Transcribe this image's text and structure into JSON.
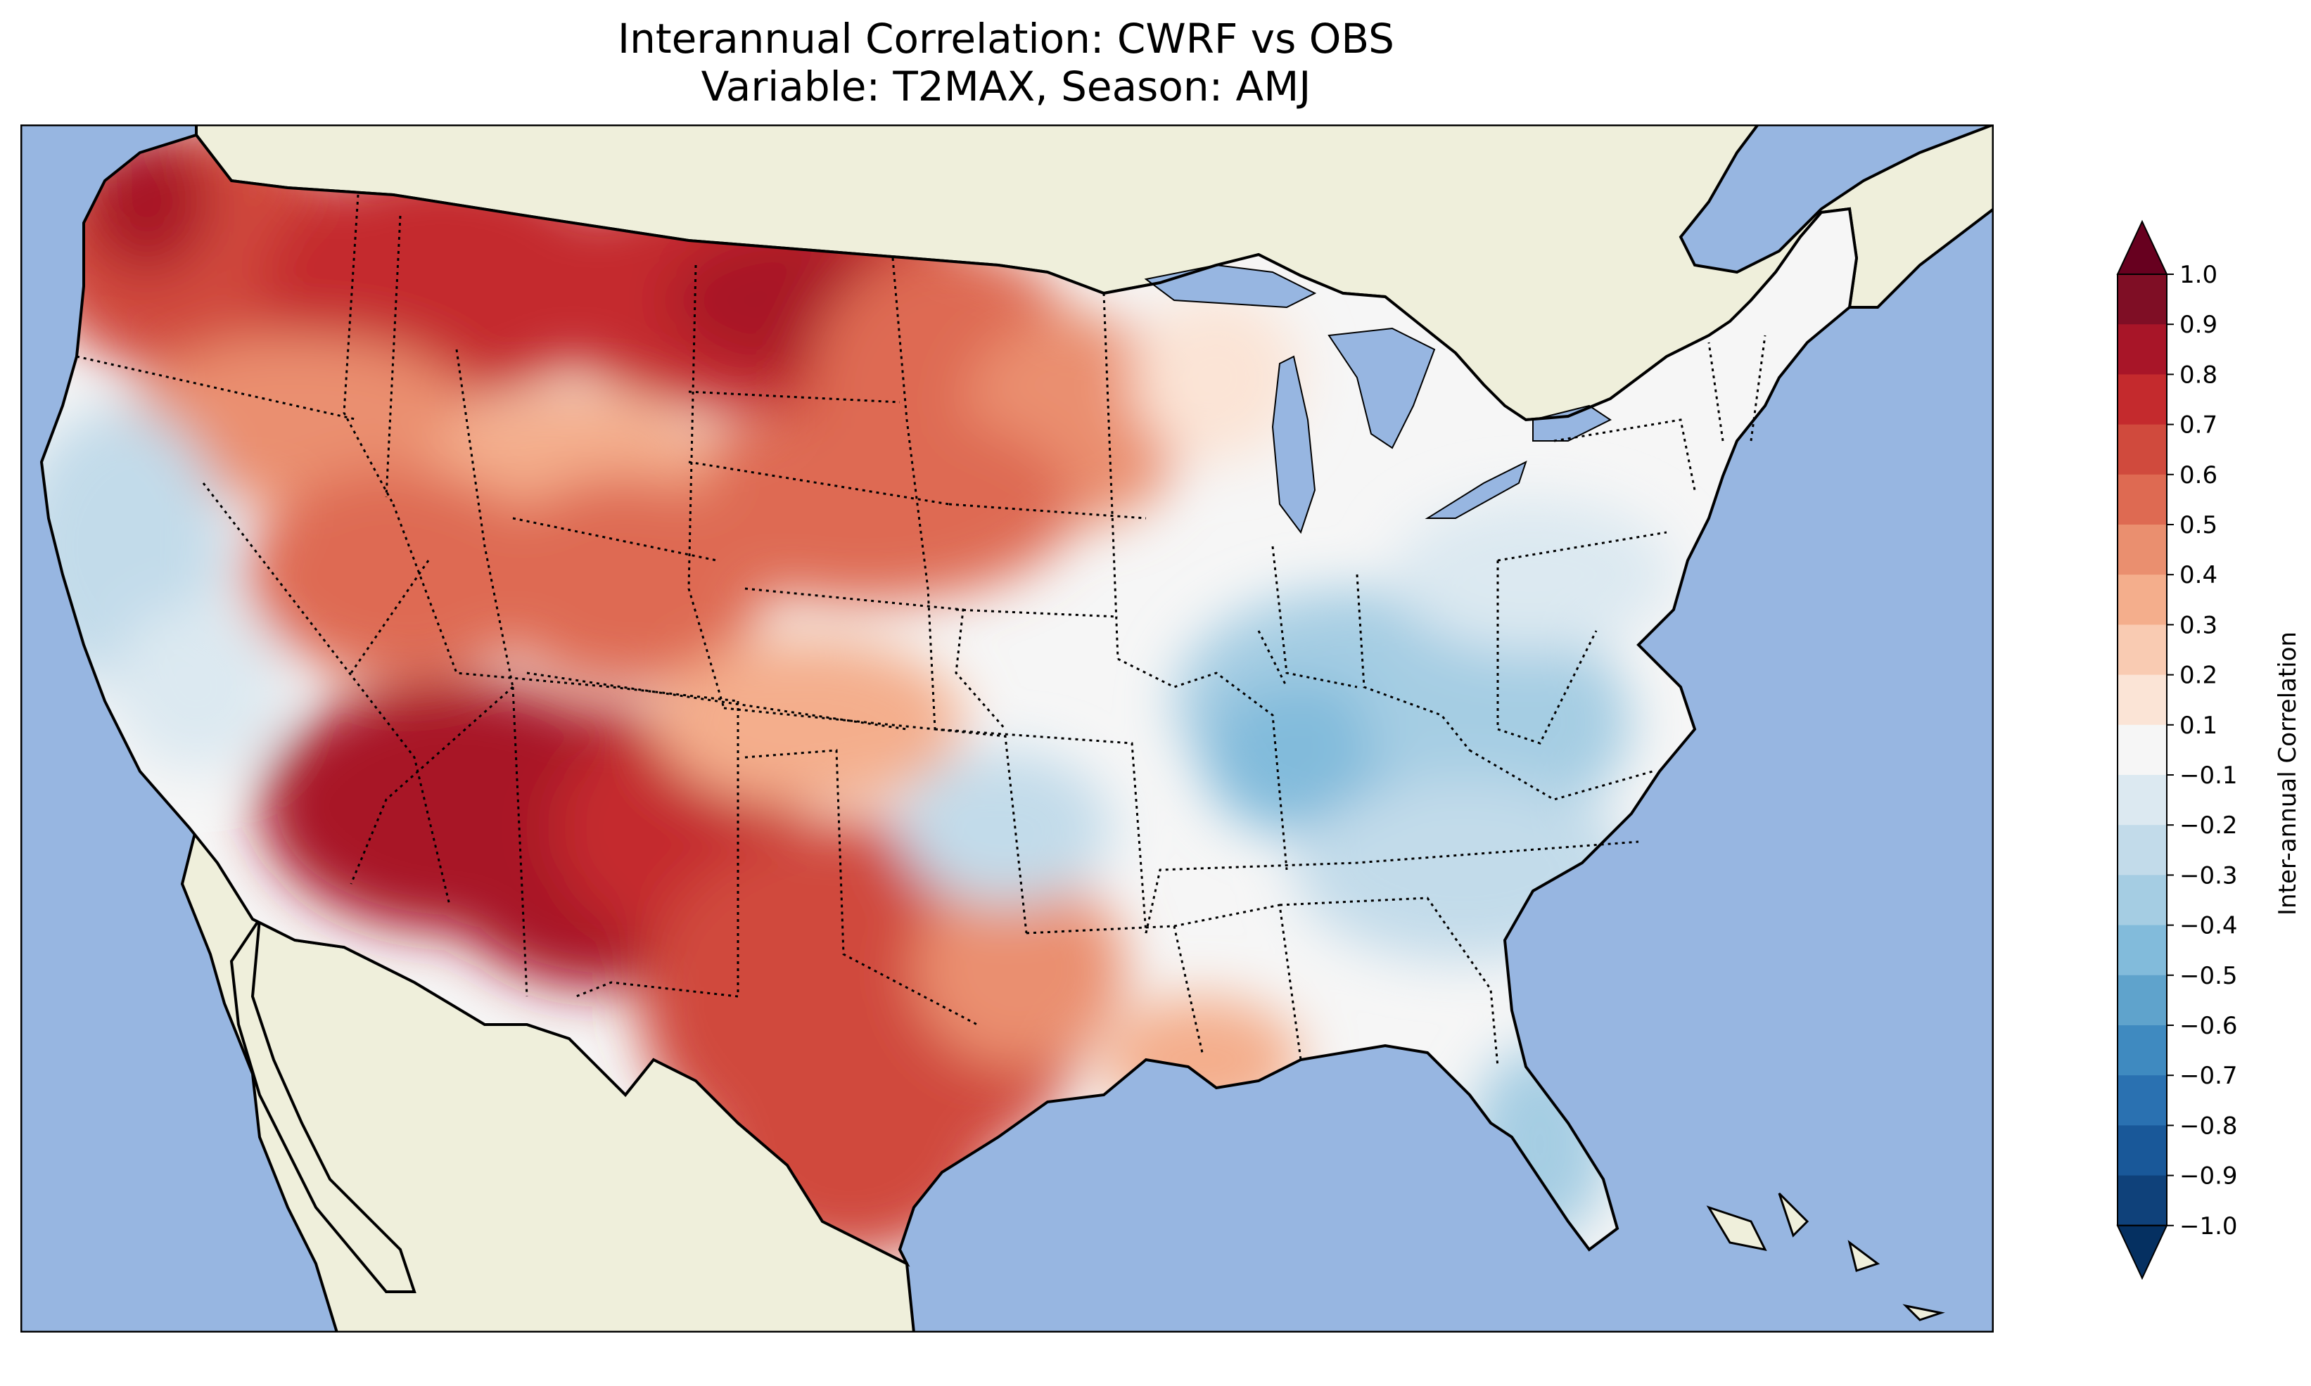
{
  "title": {
    "line1": "Interannual Correlation: CWRF vs OBS",
    "line2": "Variable: T2MAX, Season: AMJ"
  },
  "map": {
    "ocean_color": "#97b6e1",
    "land_color": "#efefdb",
    "lake_color": "#97b6e1",
    "coastline_color": "#000000",
    "border_style": "dotted",
    "extent": "Contiguous United States",
    "regions": [
      {
        "name": "pacific-northwest",
        "value": 0.65
      },
      {
        "name": "northern-rockies",
        "value": 0.7
      },
      {
        "name": "northern-plains",
        "value": 0.65
      },
      {
        "name": "central-plains",
        "value": 0.55
      },
      {
        "name": "great-basin",
        "value": 0.3
      },
      {
        "name": "california",
        "value": 0.0
      },
      {
        "name": "southwest",
        "value": 0.8
      },
      {
        "name": "southern-plains-texas",
        "value": 0.65
      },
      {
        "name": "upper-midwest",
        "value": 0.3
      },
      {
        "name": "ohio-valley",
        "value": -0.4
      },
      {
        "name": "mid-atlantic",
        "value": -0.3
      },
      {
        "name": "southeast",
        "value": -0.15
      },
      {
        "name": "florida",
        "value": -0.35
      },
      {
        "name": "northeast",
        "value": -0.1
      },
      {
        "name": "gulf-coast-louisiana",
        "value": 0.35
      }
    ]
  },
  "colorbar": {
    "label": "Inter-annual Correlation",
    "min": -1.0,
    "max": 1.0,
    "extend": "both",
    "levels": [
      -1.0,
      -0.9,
      -0.8,
      -0.7,
      -0.6,
      -0.5,
      -0.4,
      -0.3,
      -0.2,
      -0.1,
      0.1,
      0.2,
      0.3,
      0.4,
      0.5,
      0.6,
      0.7,
      0.8,
      0.9,
      1.0
    ],
    "tick_labels": [
      "1.0",
      "0.9",
      "0.8",
      "0.7",
      "0.6",
      "0.5",
      "0.4",
      "0.3",
      "0.2",
      "0.1",
      "−0.1",
      "−0.2",
      "−0.3",
      "−0.4",
      "−0.5",
      "−0.6",
      "−0.7",
      "−0.8",
      "−0.9",
      "−1.0"
    ],
    "colors_top_to_bottom": [
      "#7f0e25",
      "#a81528",
      "#c42a2d",
      "#d04a3d",
      "#de6a52",
      "#ea8f6f",
      "#f4ae8c",
      "#f9cbb2",
      "#fbe4d6",
      "#f6f6f6",
      "#dce9f1",
      "#c2dbea",
      "#a5cde3",
      "#82bbdb",
      "#5fa3cc",
      "#3f8ac0",
      "#2a71b1",
      "#195899",
      "#0f417a"
    ],
    "extend_top_color": "#67001f",
    "extend_bottom_color": "#053061"
  }
}
